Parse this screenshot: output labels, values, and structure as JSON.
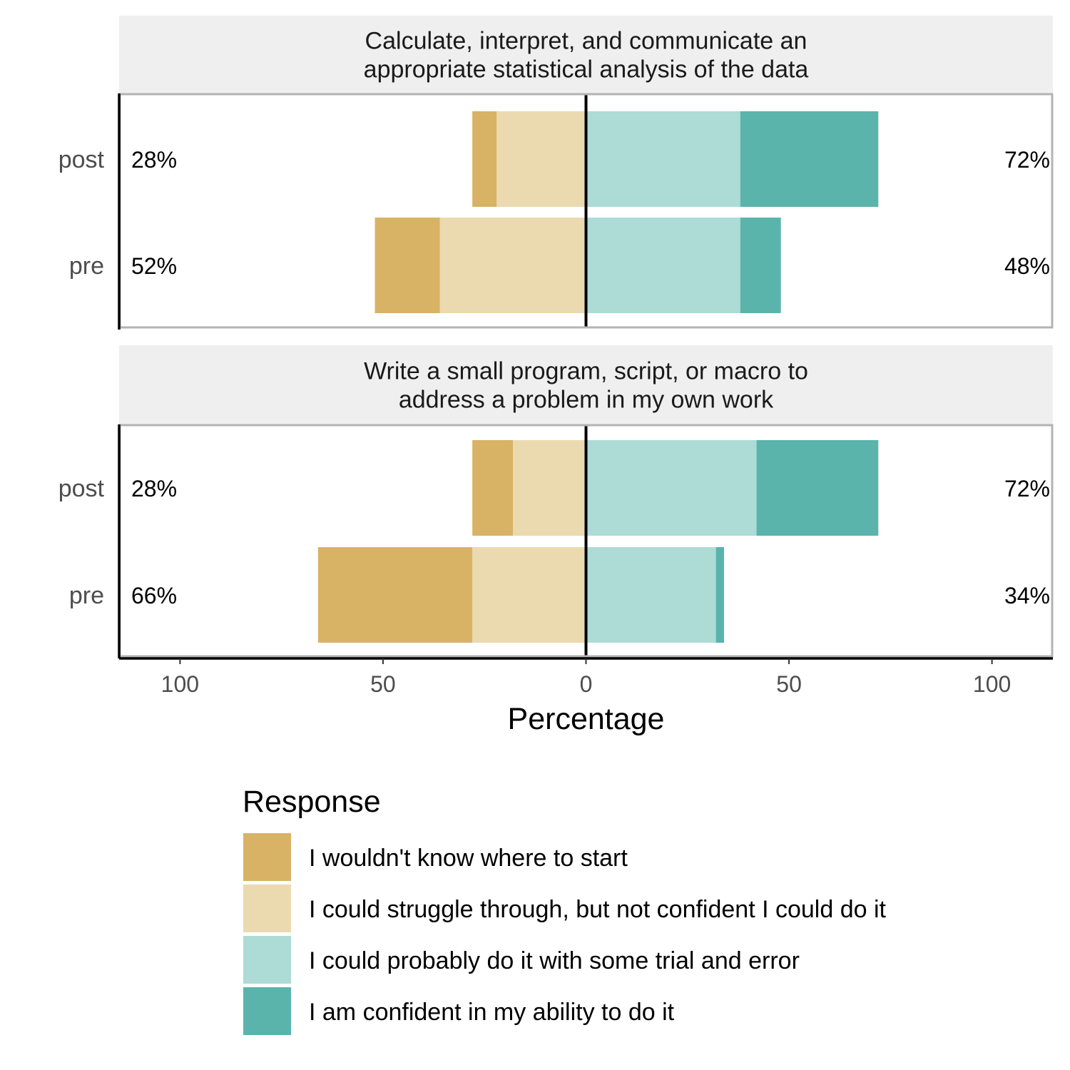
{
  "chart_data": {
    "type": "bar",
    "orientation": "horizontal",
    "diverging": true,
    "xlabel": "Percentage",
    "xlim": [
      -115,
      115
    ],
    "x_ticks": [
      -100,
      -50,
      0,
      50,
      100
    ],
    "x_tick_labels": [
      "100",
      "50",
      "0",
      "50",
      "100"
    ],
    "grid": false,
    "legend": {
      "title": "Response",
      "placement": "bottom"
    },
    "series": [
      {
        "name": "I wouldn't know where to start",
        "color": "#d8b365",
        "side": "negative"
      },
      {
        "name": "I could struggle through, but not confident I could do it",
        "color": "#ebdab0",
        "side": "negative"
      },
      {
        "name": "I could probably do it with some trial and error",
        "color": "#addbd6",
        "side": "positive"
      },
      {
        "name": "I am confident in my ability to do it",
        "color": "#5ab4ac",
        "side": "positive"
      }
    ],
    "panels": [
      {
        "title": "Calculate, interpret, and communicate an\nappropriate statistical analysis of the data",
        "rows": [
          {
            "label": "post",
            "values": [
              6,
              22,
              38,
              34
            ],
            "low_label": "28%",
            "high_label": "72%"
          },
          {
            "label": "pre",
            "values": [
              16,
              36,
              38,
              10
            ],
            "low_label": "52%",
            "high_label": "48%"
          }
        ]
      },
      {
        "title": "Write a small program, script, or macro to\naddress a problem in my own work",
        "rows": [
          {
            "label": "post",
            "values": [
              10,
              18,
              42,
              30
            ],
            "low_label": "28%",
            "high_label": "72%"
          },
          {
            "label": "pre",
            "values": [
              38,
              28,
              32,
              2
            ],
            "low_label": "66%",
            "high_label": "34%"
          }
        ]
      }
    ]
  }
}
